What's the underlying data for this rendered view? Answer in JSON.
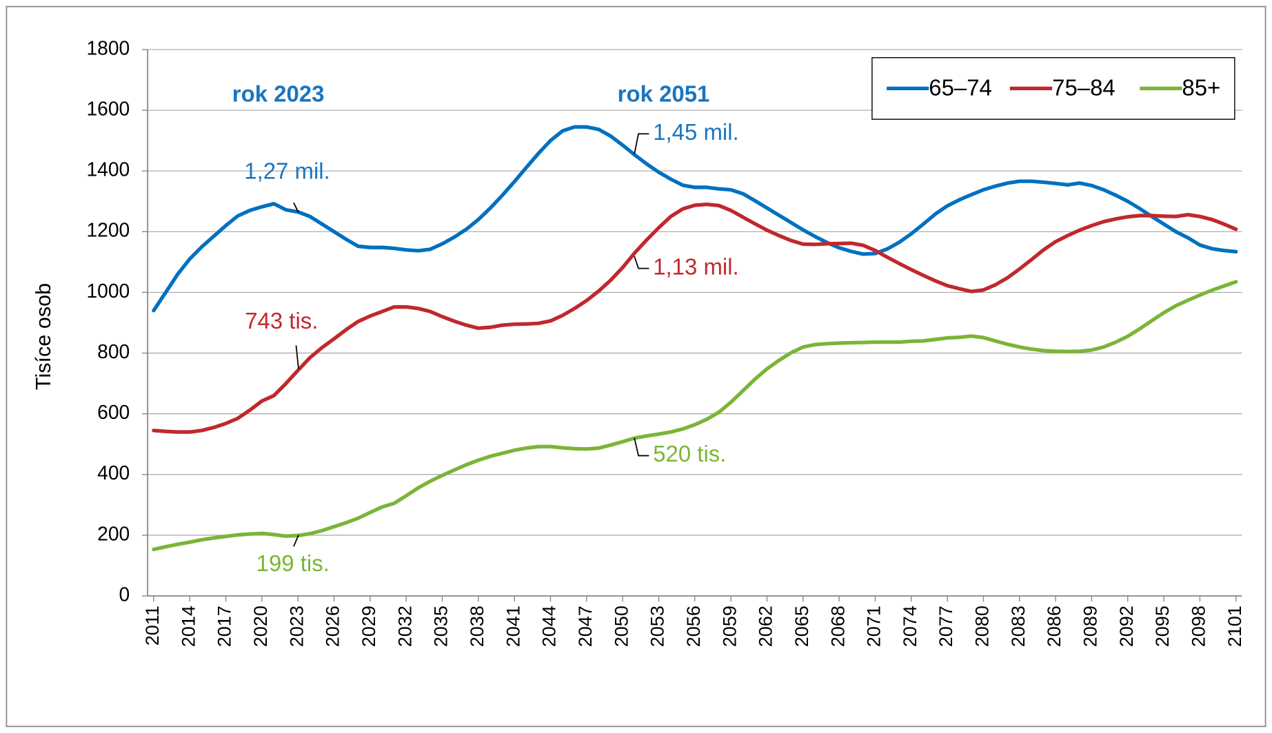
{
  "chart_data": {
    "type": "line",
    "y_label": "Tisíce osob",
    "xlim": [
      2010.5,
      2101.5
    ],
    "xticks": [
      2011,
      2014,
      2017,
      2020,
      2023,
      2026,
      2029,
      2032,
      2035,
      2038,
      2041,
      2044,
      2047,
      2050,
      2053,
      2056,
      2059,
      2062,
      2065,
      2068,
      2071,
      2074,
      2077,
      2080,
      2083,
      2086,
      2089,
      2092,
      2095,
      2098,
      2101
    ],
    "ylim": [
      0,
      1800
    ],
    "yticks": [
      0,
      200,
      400,
      600,
      800,
      1000,
      1200,
      1400,
      1600,
      1800
    ],
    "grid": true,
    "legend": "upper right",
    "x": [
      2011,
      2012,
      2013,
      2014,
      2015,
      2016,
      2017,
      2018,
      2019,
      2020,
      2021,
      2022,
      2023,
      2024,
      2025,
      2026,
      2027,
      2028,
      2029,
      2030,
      2031,
      2032,
      2033,
      2034,
      2035,
      2036,
      2037,
      2038,
      2039,
      2040,
      2041,
      2042,
      2043,
      2044,
      2045,
      2046,
      2047,
      2048,
      2049,
      2050,
      2051,
      2052,
      2053,
      2054,
      2055,
      2056,
      2057,
      2058,
      2059,
      2060,
      2061,
      2062,
      2063,
      2064,
      2065,
      2066,
      2067,
      2068,
      2069,
      2070,
      2071,
      2072,
      2073,
      2074,
      2075,
      2076,
      2077,
      2078,
      2079,
      2080,
      2081,
      2082,
      2083,
      2084,
      2085,
      2086,
      2087,
      2088,
      2089,
      2090,
      2091,
      2092,
      2093,
      2094,
      2095,
      2096,
      2097,
      2098,
      2099,
      2100,
      2101
    ],
    "series": [
      {
        "name": "65–74",
        "color": "#0070c0",
        "values": [
          940,
          1000,
          1060,
          1110,
          1150,
          1185,
          1220,
          1252,
          1270,
          1282,
          1292,
          1272,
          1265,
          1250,
          1225,
          1200,
          1175,
          1152,
          1148,
          1148,
          1145,
          1140,
          1137,
          1142,
          1160,
          1182,
          1208,
          1240,
          1278,
          1320,
          1365,
          1412,
          1458,
          1500,
          1532,
          1545,
          1545,
          1537,
          1515,
          1485,
          1453,
          1423,
          1396,
          1373,
          1353,
          1346,
          1346,
          1341,
          1338,
          1325,
          1302,
          1278,
          1254,
          1230,
          1206,
          1184,
          1164,
          1147,
          1135,
          1126,
          1128,
          1143,
          1165,
          1193,
          1225,
          1258,
          1285,
          1305,
          1322,
          1338,
          1350,
          1360,
          1366,
          1366,
          1363,
          1359,
          1354,
          1360,
          1352,
          1338,
          1320,
          1300,
          1276,
          1250,
          1225,
          1200,
          1180,
          1156,
          1144,
          1138,
          1134
        ]
      },
      {
        "name": "75–84",
        "color": "#c0282d",
        "values": [
          545,
          542,
          540,
          540,
          545,
          555,
          568,
          585,
          612,
          642,
          660,
          700,
          743,
          785,
          818,
          847,
          877,
          904,
          922,
          937,
          952,
          952,
          947,
          937,
          920,
          905,
          892,
          882,
          885,
          892,
          895,
          896,
          898,
          906,
          924,
          947,
          973,
          1004,
          1040,
          1082,
          1130,
          1173,
          1213,
          1250,
          1275,
          1287,
          1290,
          1286,
          1270,
          1248,
          1226,
          1205,
          1187,
          1171,
          1159,
          1158,
          1160,
          1161,
          1162,
          1155,
          1138,
          1116,
          1095,
          1075,
          1056,
          1038,
          1022,
          1012,
          1003,
          1008,
          1025,
          1048,
          1077,
          1108,
          1140,
          1167,
          1187,
          1205,
          1220,
          1233,
          1242,
          1249,
          1253,
          1253,
          1251,
          1250,
          1256,
          1250,
          1240,
          1225,
          1208
        ]
      },
      {
        "name": "85+",
        "color": "#7ab536",
        "values": [
          153,
          162,
          170,
          177,
          185,
          191,
          196,
          201,
          204,
          206,
          202,
          197,
          199,
          205,
          215,
          228,
          241,
          256,
          275,
          293,
          305,
          330,
          356,
          378,
          397,
          415,
          432,
          447,
          460,
          470,
          480,
          487,
          492,
          492,
          488,
          485,
          484,
          487,
          497,
          508,
          520,
          527,
          533,
          540,
          550,
          564,
          582,
          605,
          638,
          676,
          714,
          748,
          776,
          801,
          820,
          828,
          831,
          833,
          834,
          835,
          836,
          836,
          836,
          839,
          840,
          845,
          850,
          852,
          856,
          851,
          840,
          829,
          820,
          813,
          808,
          806,
          805,
          806,
          810,
          820,
          836,
          855,
          880,
          907,
          933,
          956,
          974,
          991,
          1007,
          1021,
          1035
        ]
      }
    ],
    "annotations": [
      {
        "text": "rok 2023",
        "color": "#1a75bf",
        "bold": true
      },
      {
        "text": "rok 2051",
        "color": "#1a75bf",
        "bold": true
      },
      {
        "text": "1,27 mil.",
        "color": "#1a75bf"
      },
      {
        "text": "1,45 mil.",
        "color": "#1a75bf"
      },
      {
        "text": "1,13 mil.",
        "color": "#c0282d"
      },
      {
        "text": "743 tis.",
        "color": "#c0282d"
      },
      {
        "text": "520 tis.",
        "color": "#7ab536"
      },
      {
        "text": "199 tis.",
        "color": "#7ab536"
      }
    ]
  }
}
